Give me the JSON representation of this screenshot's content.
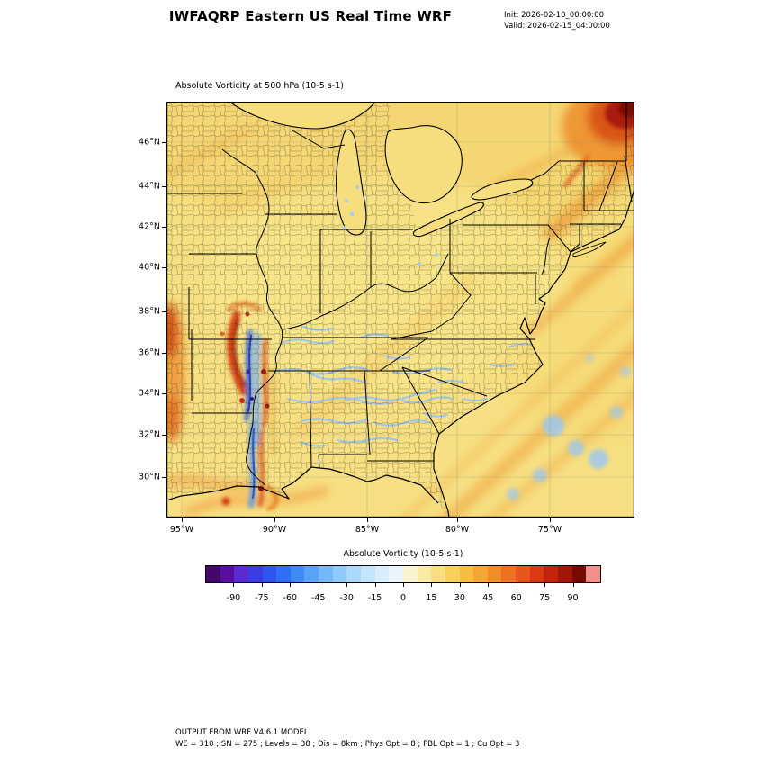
{
  "header": {
    "title": "IWFAQRP Eastern US Real Time WRF",
    "init": "Init: 2026-02-10_00:00:00",
    "valid": "Valid: 2026-02-15_04:00:00"
  },
  "map": {
    "subtitle": "Absolute Vorticity at 500 hPa  (10-5 s-1)"
  },
  "axes": {
    "lat": [
      "46°N",
      "44°N",
      "42°N",
      "40°N",
      "38°N",
      "36°N",
      "34°N",
      "32°N",
      "30°N"
    ],
    "lon": [
      "95°W",
      "90°W",
      "85°W",
      "80°W",
      "75°W"
    ]
  },
  "colorbar": {
    "title": "Absolute Vorticity  (10-5 s-1)",
    "ticks": [
      "-90",
      "-75",
      "-60",
      "-45",
      "-30",
      "-15",
      "0",
      "15",
      "30",
      "45",
      "60",
      "75",
      "90"
    ],
    "colors": [
      "#43076e",
      "#5a0ea0",
      "#5b2bd0",
      "#3d3ce0",
      "#2f55ec",
      "#2f6ff4",
      "#3f8af6",
      "#58a3f8",
      "#74b8fa",
      "#90cafb",
      "#abd8fc",
      "#c3e4fd",
      "#d8eefd",
      "#eaf5fb",
      "#faf3cf",
      "#fbeaa6",
      "#fade7f",
      "#f8cf5c",
      "#f6bc44",
      "#f4a636",
      "#f18e2a",
      "#ed7322",
      "#e6571b",
      "#d93a14",
      "#c1250e",
      "#a01708",
      "#760b04",
      "#f4908c"
    ]
  },
  "footer": {
    "line1": "OUTPUT FROM WRF V4.6.1 MODEL",
    "line2": "WE = 310 ; SN = 275 ; Levels = 38 ; Dis = 8km ; Phys Opt = 8 ; PBL Opt = 1 ; Cu Opt = 3"
  },
  "chart_data": {
    "type": "heatmap",
    "title": "Absolute Vorticity at 500 hPa  (10-5 s-1)",
    "variable": "Absolute Vorticity",
    "units": "10-5 s-1",
    "level": "500 hPa",
    "lat_ticks": [
      "46°N",
      "44°N",
      "42°N",
      "40°N",
      "38°N",
      "36°N",
      "34°N",
      "32°N",
      "30°N"
    ],
    "lon_ticks": [
      "95°W",
      "90°W",
      "85°W",
      "80°W",
      "75°W"
    ],
    "approx_extent": {
      "lat": [
        28,
        48
      ],
      "lon_west": [
        96,
        70
      ]
    },
    "colorbar": {
      "title": "Absolute Vorticity  (10-5 s-1)",
      "tick_values": [
        -90,
        -75,
        -60,
        -45,
        -30,
        -15,
        0,
        15,
        30,
        45,
        60,
        75,
        90
      ]
    },
    "field_features": [
      {
        "region": "most of domain (land and ocean)",
        "value_range": [
          10,
          25
        ],
        "description": "pale-yellow background positive vorticity"
      },
      {
        "region": "northern Maine / New Brunswick, top-right corner",
        "value_range": [
          60,
          95
        ],
        "description": "strong vorticity maximum (dark red core with orange halo)"
      },
      {
        "region": "Missouri - Arkansas - Louisiana corridor",
        "value_range": [
          -60,
          75
        ],
        "description": "intense alternating positive (red) and negative (blue) vorticity streaks"
      },
      {
        "region": "western map edge near 95W, 31N-37N",
        "value_range": [
          30,
          60
        ],
        "description": "elongated orange/red positive band"
      },
      {
        "region": "Tennessee / Alabama / Georgia / Carolinas",
        "value_range": [
          -25,
          0
        ],
        "description": "thin weak-negative (light blue) filaments"
      },
      {
        "region": "Atlantic offshore the Southeast coast",
        "value_range": [
          -30,
          -10
        ],
        "description": "scattered weak negative patches"
      },
      {
        "region": "Mid-Atlantic, New England and offshore",
        "value_range": [
          25,
          45
        ],
        "description": "SW-NE oriented positive orange bands"
      },
      {
        "region": "Gulf coast near Mississippi delta",
        "value_range": [
          30,
          70
        ],
        "description": "curved positive filaments along the coastline"
      }
    ]
  }
}
